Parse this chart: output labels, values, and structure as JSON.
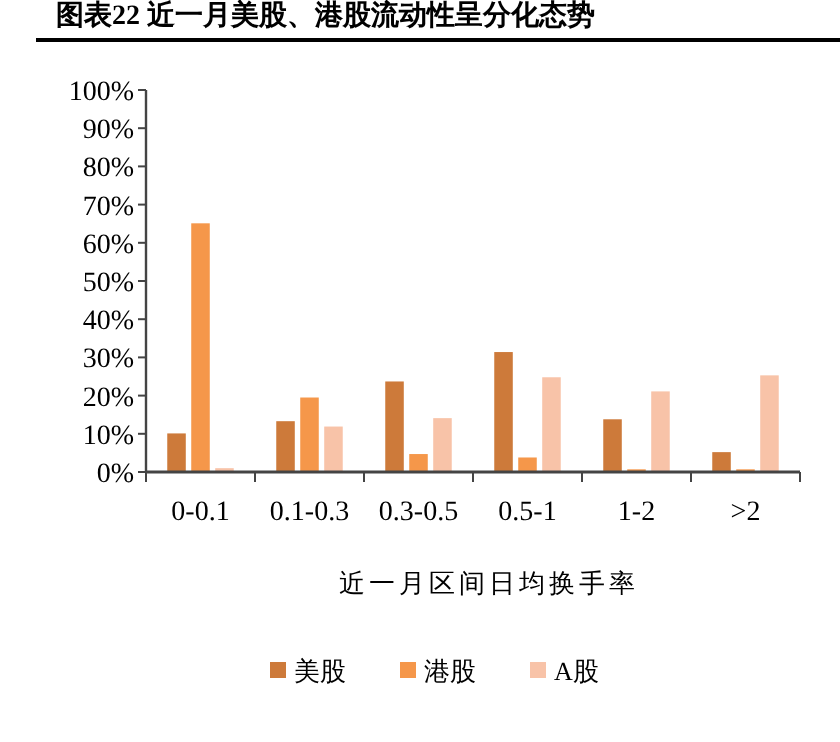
{
  "chart_data": {
    "type": "bar",
    "title": "图表22 近一月美股、港股流动性呈分化态势",
    "xlabel": "近一月区间日均换手率",
    "categories": [
      "0-0.1",
      "0.1-0.3",
      "0.3-0.5",
      "0.5-1",
      "1-2",
      ">2"
    ],
    "series": [
      {
        "name": "美股",
        "color": "#cd7a3a",
        "values": [
          10.1,
          13.3,
          23.7,
          31.4,
          13.8,
          5.2
        ]
      },
      {
        "name": "港股",
        "color": "#f5974a",
        "values": [
          65.1,
          19.5,
          4.7,
          3.8,
          0.7,
          0.7
        ]
      },
      {
        "name": "A股",
        "color": "#f8c3a8",
        "values": [
          1.0,
          11.9,
          14.1,
          24.8,
          21.1,
          25.3
        ]
      }
    ],
    "ylim": [
      0,
      100
    ],
    "yticks": [
      {
        "value": 0,
        "label": "0%"
      },
      {
        "value": 10,
        "label": "10%"
      },
      {
        "value": 20,
        "label": "20%"
      },
      {
        "value": 30,
        "label": "30%"
      },
      {
        "value": 40,
        "label": "40%"
      },
      {
        "value": 50,
        "label": "50%"
      },
      {
        "value": 60,
        "label": "60%"
      },
      {
        "value": 70,
        "label": "70%"
      },
      {
        "value": 80,
        "label": "80%"
      },
      {
        "value": 90,
        "label": "90%"
      },
      {
        "value": 100,
        "label": "100%"
      }
    ],
    "grid": false,
    "legend": "bottom"
  }
}
